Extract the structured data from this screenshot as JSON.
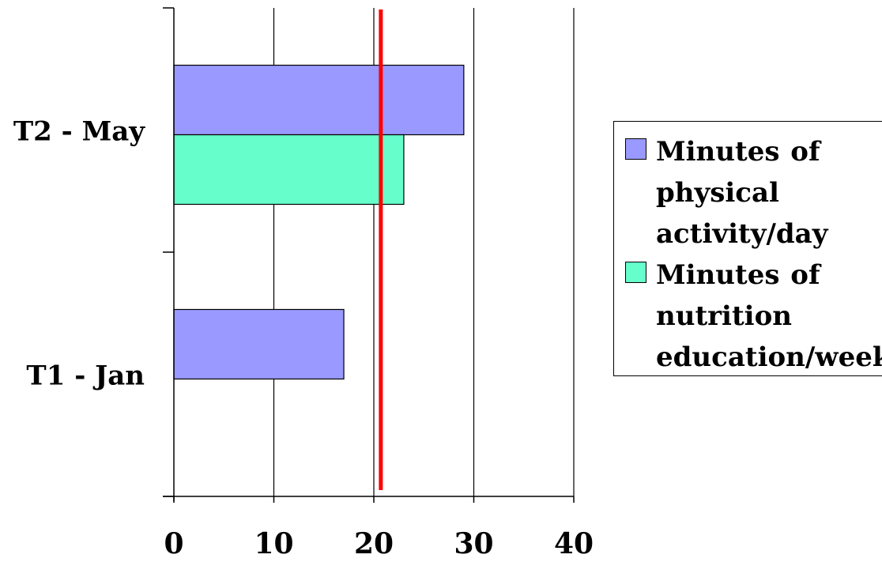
{
  "chart_data": {
    "type": "bar",
    "orientation": "horizontal",
    "categories": [
      "T2 - May",
      "T1 - Jan"
    ],
    "series": [
      {
        "name": "Minutes of physical activity/day",
        "color": "#9999ff",
        "values": [
          29,
          17
        ]
      },
      {
        "name": "Minutes of nutrition education/week",
        "color": "#66ffcc",
        "values": [
          23,
          null
        ]
      }
    ],
    "reference_line": {
      "value": 20.7,
      "color": "#ff0000"
    },
    "xlim": [
      0,
      40
    ],
    "x_ticks": [
      "0",
      "10",
      "20",
      "30",
      "40"
    ],
    "grid": true,
    "title": "",
    "xlabel": "",
    "ylabel": "",
    "legend_position": "right"
  }
}
